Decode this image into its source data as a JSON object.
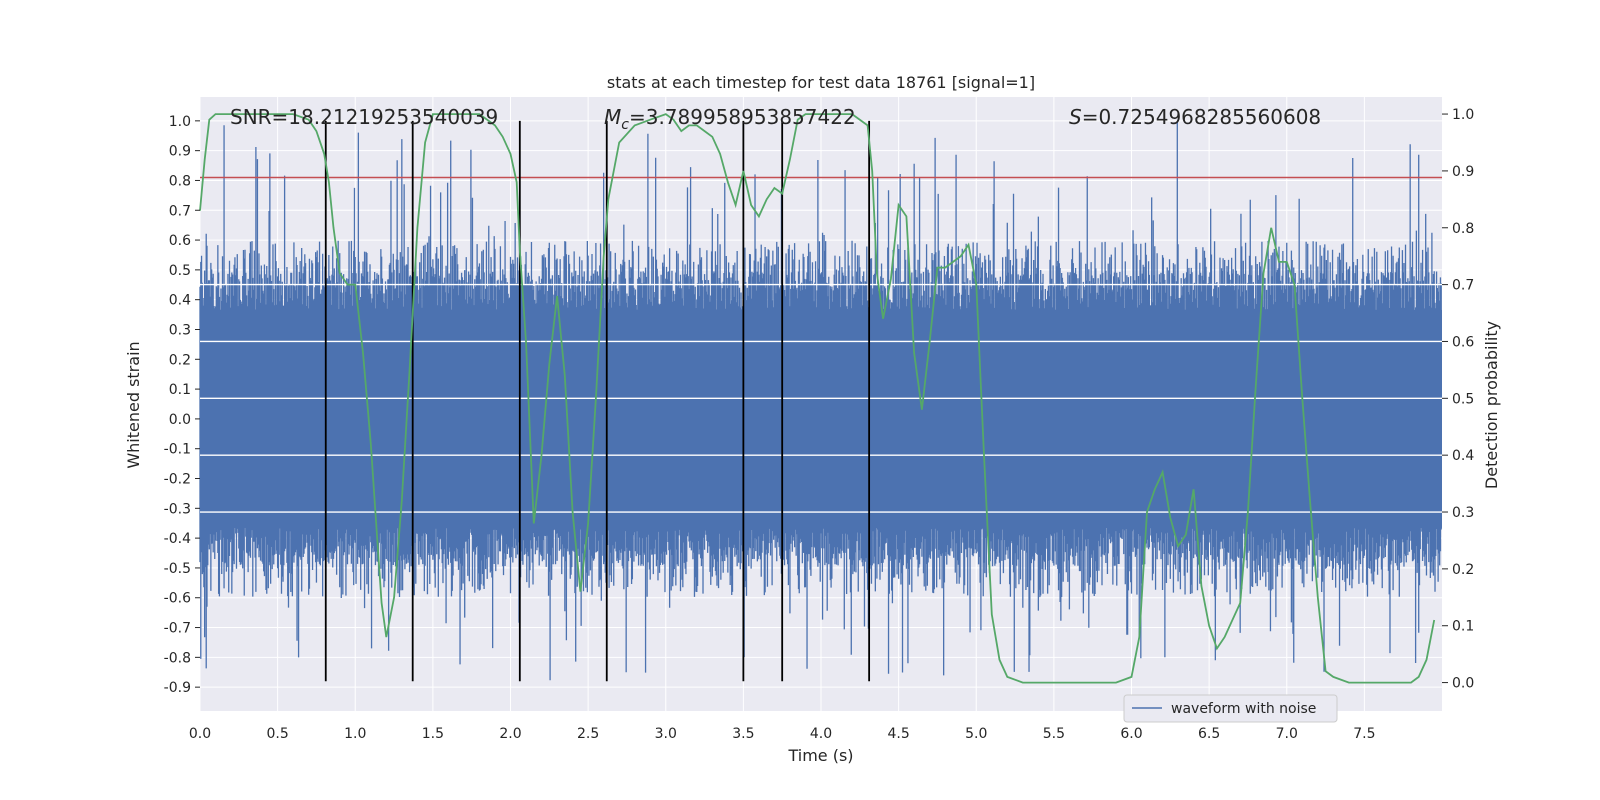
{
  "chart_data": {
    "type": "line",
    "title": "stats at each timestep for test data 18761 [signal=1]",
    "xlabel": "Time (s)",
    "ylabel_left": "Whitened strain",
    "ylabel_right": "Detection probability",
    "xlim": [
      0.0,
      8.0
    ],
    "ylim_left": [
      -0.98,
      1.08
    ],
    "ylim_right": [
      -0.05,
      1.03
    ],
    "x_ticks": [
      0.0,
      0.5,
      1.0,
      1.5,
      2.0,
      2.5,
      3.0,
      3.5,
      4.0,
      4.5,
      5.0,
      5.5,
      6.0,
      6.5,
      7.0,
      7.5
    ],
    "x_tick_labels": [
      "0.0",
      "0.5",
      "1.0",
      "1.5",
      "2.0",
      "2.5",
      "3.0",
      "3.5",
      "4.0",
      "4.5",
      "5.0",
      "5.5",
      "6.0",
      "6.5",
      "7.0",
      "7.5"
    ],
    "y_left_ticks": [
      1.0,
      0.9,
      0.8,
      0.7,
      0.6,
      0.5,
      0.4,
      0.3,
      0.2,
      0.1,
      0.0,
      -0.1,
      -0.2,
      -0.3,
      -0.4,
      -0.5,
      -0.6,
      -0.7,
      -0.8,
      -0.9
    ],
    "y_left_tick_labels": [
      "1.0",
      "0.9",
      "0.8",
      "0.7",
      "0.6",
      "0.5",
      "0.4",
      "0.3",
      "0.2",
      "0.1",
      "0.0",
      "-0.1",
      "-0.2",
      "-0.3",
      "-0.4",
      "-0.5",
      "-0.6",
      "-0.7",
      "-0.8",
      "-0.9"
    ],
    "y_right_ticks": [
      1.0,
      0.9,
      0.8,
      0.7,
      0.6,
      0.5,
      0.4,
      0.3,
      0.2,
      0.1,
      0.0
    ],
    "y_right_tick_labels": [
      "1.0",
      "0.9",
      "0.8",
      "0.7",
      "0.6",
      "0.5",
      "0.4",
      "0.3",
      "0.2",
      "0.1",
      "0.0"
    ],
    "annotations": {
      "snr": "SNR=18.21219253540039",
      "mc_symbol": "M",
      "mc_sub": "c",
      "mc_value": "=3.789958953857422",
      "s_symbol": "S",
      "s_value": "=0.7254968285560608"
    },
    "threshold_y_left": 0.81,
    "vertical_lines_x": [
      0.81,
      1.37,
      2.06,
      2.62,
      3.5,
      3.75,
      4.31
    ],
    "waveform": {
      "name": "waveform with noise",
      "color": "#4c72b0",
      "num_samples": 1600,
      "core_amplitude": 0.43,
      "typical_peak_amplitude": 0.55,
      "max_peak_amplitude": 1.0
    },
    "detection_probability": {
      "name": "detection probability",
      "color": "#55a868",
      "x": [
        0.0,
        0.03,
        0.06,
        0.1,
        0.15,
        0.3,
        0.5,
        0.6,
        0.7,
        0.75,
        0.8,
        0.83,
        0.86,
        0.9,
        0.95,
        1.0,
        1.05,
        1.1,
        1.13,
        1.17,
        1.2,
        1.25,
        1.3,
        1.35,
        1.4,
        1.45,
        1.5,
        1.6,
        1.7,
        1.8,
        1.9,
        1.95,
        2.0,
        2.04,
        2.06,
        2.1,
        2.15,
        2.2,
        2.25,
        2.3,
        2.35,
        2.4,
        2.45,
        2.5,
        2.55,
        2.6,
        2.63,
        2.7,
        2.8,
        2.9,
        3.0,
        3.05,
        3.1,
        3.15,
        3.2,
        3.25,
        3.3,
        3.35,
        3.4,
        3.45,
        3.5,
        3.55,
        3.6,
        3.65,
        3.7,
        3.75,
        3.8,
        3.85,
        3.9,
        4.0,
        4.1,
        4.2,
        4.3,
        4.33,
        4.36,
        4.4,
        4.45,
        4.5,
        4.55,
        4.6,
        4.65,
        4.7,
        4.75,
        4.8,
        4.85,
        4.9,
        4.95,
        5.0,
        5.05,
        5.1,
        5.15,
        5.2,
        5.3,
        5.4,
        5.5,
        5.6,
        5.7,
        5.8,
        5.9,
        6.0,
        6.05,
        6.1,
        6.15,
        6.2,
        6.25,
        6.3,
        6.35,
        6.4,
        6.45,
        6.5,
        6.55,
        6.6,
        6.65,
        6.7,
        6.75,
        6.8,
        6.85,
        6.9,
        6.95,
        7.0,
        7.05,
        7.1,
        7.15,
        7.2,
        7.25,
        7.3,
        7.4,
        7.5,
        7.6,
        7.7,
        7.8,
        7.85,
        7.9,
        7.95
      ],
      "y": [
        0.83,
        0.92,
        0.99,
        1.0,
        1.0,
        1.0,
        1.0,
        1.0,
        0.99,
        0.97,
        0.93,
        0.88,
        0.8,
        0.72,
        0.7,
        0.7,
        0.58,
        0.42,
        0.3,
        0.14,
        0.08,
        0.15,
        0.32,
        0.55,
        0.8,
        0.95,
        1.0,
        1.0,
        1.0,
        1.0,
        0.98,
        0.96,
        0.93,
        0.88,
        0.76,
        0.6,
        0.28,
        0.4,
        0.56,
        0.68,
        0.54,
        0.3,
        0.16,
        0.28,
        0.5,
        0.75,
        0.85,
        0.95,
        0.98,
        0.99,
        1.0,
        0.99,
        0.97,
        0.98,
        0.98,
        0.97,
        0.96,
        0.93,
        0.88,
        0.84,
        0.9,
        0.84,
        0.82,
        0.85,
        0.87,
        0.86,
        0.92,
        0.99,
        1.0,
        1.0,
        1.0,
        1.0,
        0.98,
        0.9,
        0.72,
        0.64,
        0.71,
        0.84,
        0.82,
        0.58,
        0.48,
        0.6,
        0.73,
        0.73,
        0.74,
        0.75,
        0.77,
        0.7,
        0.4,
        0.12,
        0.04,
        0.01,
        0.0,
        0.0,
        0.0,
        0.0,
        0.0,
        0.0,
        0.0,
        0.01,
        0.08,
        0.3,
        0.34,
        0.37,
        0.29,
        0.24,
        0.26,
        0.34,
        0.17,
        0.1,
        0.06,
        0.08,
        0.11,
        0.14,
        0.3,
        0.52,
        0.72,
        0.8,
        0.74,
        0.74,
        0.7,
        0.5,
        0.32,
        0.15,
        0.02,
        0.01,
        0.0,
        0.0,
        0.0,
        0.0,
        0.0,
        0.01,
        0.04,
        0.11
      ]
    },
    "colors": {
      "waveform": "#4c72b0",
      "probability": "#55a868",
      "threshold": "#c44e52",
      "vlines": "#000000",
      "plot_bg": "#eaeaf2",
      "grid": "#ffffff"
    },
    "legend": {
      "location": "lower-right",
      "entries": [
        "waveform with noise"
      ]
    }
  }
}
